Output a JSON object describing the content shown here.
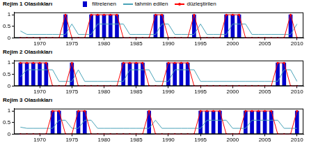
{
  "chart_data": [
    {
      "type": "bar",
      "title": "Rejim 1 Olasılıkları",
      "legend": "top",
      "grid": false,
      "x": [
        1967,
        1968,
        1969,
        1970,
        1971,
        1972,
        1973,
        1974,
        1975,
        1976,
        1977,
        1978,
        1979,
        1980,
        1981,
        1982,
        1983,
        1984,
        1985,
        1986,
        1987,
        1988,
        1989,
        1990,
        1991,
        1992,
        1993,
        1994,
        1995,
        1996,
        1997,
        1998,
        1999,
        2000,
        2001,
        2002,
        2003,
        2004,
        2005,
        2006,
        2007,
        2008,
        2009,
        2010
      ],
      "xlim": [
        1966,
        2011
      ],
      "xticks": [
        1970,
        1975,
        1980,
        1985,
        1990,
        1995,
        2000,
        2005,
        2010
      ],
      "ylim": [
        0,
        1.1
      ],
      "yticks": [
        0,
        0.5,
        1
      ],
      "series": [
        {
          "name": "filtrelenen",
          "type": "bar",
          "color": "#0000cc",
          "values": [
            0,
            0,
            0,
            0,
            0,
            0,
            0,
            1,
            0,
            0,
            0,
            1,
            1,
            1,
            1,
            1,
            0,
            0,
            0,
            0,
            0,
            1,
            1,
            0,
            0,
            0,
            0,
            1,
            0,
            0,
            0,
            0,
            1,
            1,
            1,
            0,
            0,
            0,
            0,
            0,
            0,
            0,
            1,
            0
          ]
        },
        {
          "name": "tahmin edilen",
          "type": "line",
          "color": "#4aa3b8",
          "line_style": "solid",
          "values": [
            0.3,
            0.15,
            0.15,
            0.15,
            0.15,
            0.15,
            0.15,
            0.15,
            0.6,
            0.15,
            0.15,
            0.15,
            0.6,
            0.6,
            0.6,
            0.6,
            0.6,
            0.15,
            0.15,
            0.15,
            0.15,
            0.15,
            0.6,
            0.6,
            0.15,
            0.15,
            0.15,
            0.15,
            0.6,
            0.15,
            0.15,
            0.15,
            0.15,
            0.6,
            0.6,
            0.6,
            0.15,
            0.15,
            0.15,
            0.15,
            0.15,
            0.15,
            0.15,
            0.6
          ]
        },
        {
          "name": "düzleştirilen",
          "type": "line",
          "color": "#ff0000",
          "marker": "circle",
          "line_style": "solid",
          "values": [
            0,
            0,
            0,
            0,
            0,
            0,
            0,
            1,
            0,
            0,
            0,
            1,
            1,
            1,
            1,
            1,
            0,
            0,
            0,
            0,
            0,
            1,
            1,
            0,
            0,
            0,
            0,
            1,
            0,
            0,
            0,
            0,
            1,
            1,
            1,
            0,
            0,
            0,
            0,
            0,
            0,
            0,
            1,
            0
          ]
        }
      ]
    },
    {
      "type": "bar",
      "title": "Rejim 2 Olasılıkları",
      "grid": false,
      "x": [
        1967,
        1968,
        1969,
        1970,
        1971,
        1972,
        1973,
        1974,
        1975,
        1976,
        1977,
        1978,
        1979,
        1980,
        1981,
        1982,
        1983,
        1984,
        1985,
        1986,
        1987,
        1988,
        1989,
        1990,
        1991,
        1992,
        1993,
        1994,
        1995,
        1996,
        1997,
        1998,
        1999,
        2000,
        2001,
        2002,
        2003,
        2004,
        2005,
        2006,
        2007,
        2008,
        2009,
        2010
      ],
      "xlim": [
        1966,
        2011
      ],
      "xticks": [
        1970,
        1975,
        1980,
        1985,
        1990,
        1995,
        2000,
        2005,
        2010
      ],
      "ylim": [
        0,
        1.1
      ],
      "yticks": [
        0,
        0.5,
        1
      ],
      "series": [
        {
          "name": "filtrelenen",
          "type": "bar",
          "color": "#0000cc",
          "values": [
            1,
            1,
            1,
            1,
            1,
            0,
            0,
            0,
            1,
            0,
            0,
            0,
            0,
            0,
            0,
            0,
            1,
            1,
            1,
            1,
            0,
            0,
            0,
            1,
            1,
            1,
            1,
            0,
            0,
            0,
            0,
            0,
            0,
            0,
            0,
            0,
            0,
            0,
            0,
            0,
            1,
            1,
            0,
            0
          ]
        },
        {
          "name": "tahmin edilen",
          "type": "line",
          "color": "#4aa3b8",
          "line_style": "solid",
          "values": [
            0.4,
            0.7,
            0.7,
            0.7,
            0.7,
            0.7,
            0.2,
            0.2,
            0.2,
            0.7,
            0.2,
            0.2,
            0.2,
            0.2,
            0.2,
            0.2,
            0.2,
            0.7,
            0.7,
            0.7,
            0.7,
            0.2,
            0.2,
            0.2,
            0.7,
            0.7,
            0.7,
            0.7,
            0.2,
            0.2,
            0.2,
            0.2,
            0.2,
            0.2,
            0.2,
            0.2,
            0.2,
            0.2,
            0.2,
            0.2,
            0.2,
            0.7,
            0.7,
            0.2
          ]
        },
        {
          "name": "düzleştirilen",
          "type": "line",
          "color": "#ff0000",
          "marker": "circle",
          "line_style": "solid",
          "values": [
            1,
            1,
            1,
            1,
            1,
            0,
            0,
            0,
            1,
            0,
            0,
            0,
            0,
            0,
            0,
            0,
            1,
            1,
            1,
            1,
            0,
            0,
            0,
            1,
            1,
            1,
            1,
            0,
            0,
            0,
            0,
            0,
            0,
            0,
            0,
            0,
            0,
            0,
            0,
            0,
            1,
            1,
            0,
            0
          ]
        }
      ]
    },
    {
      "type": "bar",
      "title": "Rejim 3 Olasılıkları",
      "grid": false,
      "x": [
        1967,
        1968,
        1969,
        1970,
        1971,
        1972,
        1973,
        1974,
        1975,
        1976,
        1977,
        1978,
        1979,
        1980,
        1981,
        1982,
        1983,
        1984,
        1985,
        1986,
        1987,
        1988,
        1989,
        1990,
        1991,
        1992,
        1993,
        1994,
        1995,
        1996,
        1997,
        1998,
        1999,
        2000,
        2001,
        2002,
        2003,
        2004,
        2005,
        2006,
        2007,
        2008,
        2009,
        2010
      ],
      "xlim": [
        1966,
        2011
      ],
      "xticks": [
        1970,
        1975,
        1980,
        1985,
        1990,
        1995,
        2000,
        2005,
        2010
      ],
      "ylim": [
        0,
        1.1
      ],
      "yticks": [
        0,
        0.5,
        1
      ],
      "series": [
        {
          "name": "filtrelenen",
          "type": "bar",
          "color": "#0000cc",
          "values": [
            0,
            0,
            0,
            0,
            0,
            1,
            1,
            0,
            0,
            1,
            1,
            0,
            0,
            0,
            0,
            0,
            0,
            0,
            0,
            0,
            1,
            0,
            0,
            0,
            0,
            0,
            0,
            0,
            1,
            1,
            1,
            1,
            0,
            0,
            0,
            1,
            1,
            1,
            1,
            1,
            0,
            0,
            0,
            1
          ]
        },
        {
          "name": "tahmin edilen",
          "type": "line",
          "color": "#4aa3b8",
          "line_style": "solid",
          "values": [
            0.3,
            0.25,
            0.25,
            0.25,
            0.25,
            0.25,
            0.6,
            0.6,
            0.25,
            0.25,
            0.6,
            0.6,
            0.25,
            0.25,
            0.25,
            0.25,
            0.25,
            0.25,
            0.25,
            0.25,
            0.25,
            0.6,
            0.25,
            0.25,
            0.25,
            0.25,
            0.25,
            0.25,
            0.25,
            0.6,
            0.6,
            0.6,
            0.6,
            0.25,
            0.25,
            0.25,
            0.6,
            0.6,
            0.6,
            0.6,
            0.6,
            0.25,
            0.25,
            0.25
          ]
        },
        {
          "name": "düzleştirilen",
          "type": "line",
          "color": "#ff0000",
          "marker": "circle",
          "line_style": "solid",
          "values": [
            0,
            0,
            0,
            0,
            0,
            1,
            1,
            0,
            0,
            1,
            1,
            0,
            0,
            0,
            0,
            0,
            0,
            0,
            0,
            0,
            1,
            0,
            0,
            0,
            0,
            0,
            0,
            0,
            1,
            1,
            1,
            1,
            0,
            0,
            0,
            1,
            1,
            1,
            1,
            1,
            0,
            0,
            0,
            1
          ]
        }
      ]
    }
  ]
}
